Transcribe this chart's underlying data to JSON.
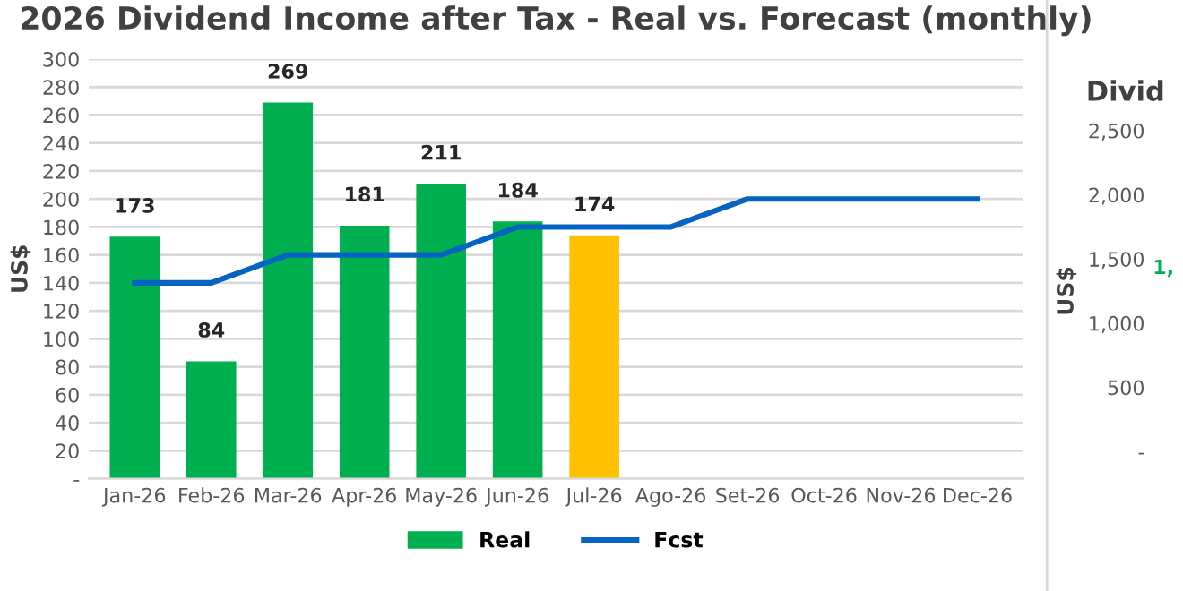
{
  "chart_data": [
    {
      "type": "bar",
      "title": "2026 Dividend Income after Tax - Real vs. Forecast (monthly)",
      "ylabel": "US$",
      "categories": [
        "Jan-26",
        "Feb-26",
        "Mar-26",
        "Apr-26",
        "May-26",
        "Jun-26",
        "Jul-26",
        "Ago-26",
        "Set-26",
        "Oct-26",
        "Nov-26",
        "Dec-26"
      ],
      "series": [
        {
          "name": "Real",
          "type": "bar",
          "color": "#00b050",
          "colors": [
            "#00b050",
            "#00b050",
            "#00b050",
            "#00b050",
            "#00b050",
            "#00b050",
            "#ffc000",
            "#00b050",
            "#00b050",
            "#00b050",
            "#00b050",
            "#00b050"
          ],
          "values": [
            173,
            84,
            269,
            181,
            211,
            184,
            174,
            null,
            null,
            null,
            null,
            null
          ],
          "value_labels": [
            "173",
            "84",
            "269",
            "181",
            "211",
            "184",
            "174",
            null,
            null,
            null,
            null,
            null
          ]
        },
        {
          "name": "Fcst",
          "type": "line",
          "color": "#0563c1",
          "values": [
            140,
            140,
            160,
            160,
            160,
            180,
            180,
            180,
            200,
            200,
            200,
            200
          ]
        }
      ],
      "ylim": [
        0,
        300
      ],
      "yticks": [
        {
          "value": 0,
          "label": "-"
        },
        20,
        40,
        60,
        80,
        100,
        120,
        140,
        160,
        180,
        200,
        220,
        240,
        260,
        280,
        300
      ],
      "grid": "y",
      "legend": "bottom",
      "marker": "none",
      "line_style": "solid"
    },
    {
      "type": "bar",
      "title": "Divid",
      "ylabel": "US$",
      "categories": [
        null
      ],
      "values": [
        null
      ],
      "ylim": [
        0,
        2500
      ],
      "yticks": [
        {
          "value": 0,
          "label": "-"
        },
        {
          "value": 500,
          "label": "500"
        },
        {
          "value": 1000,
          "label": "1,000"
        },
        {
          "value": 1500,
          "label": "1,500"
        },
        {
          "value": 2000,
          "label": "2,000"
        },
        {
          "value": 2500,
          "label": "2,500"
        }
      ],
      "annotations": [
        "1,"
      ]
    }
  ]
}
